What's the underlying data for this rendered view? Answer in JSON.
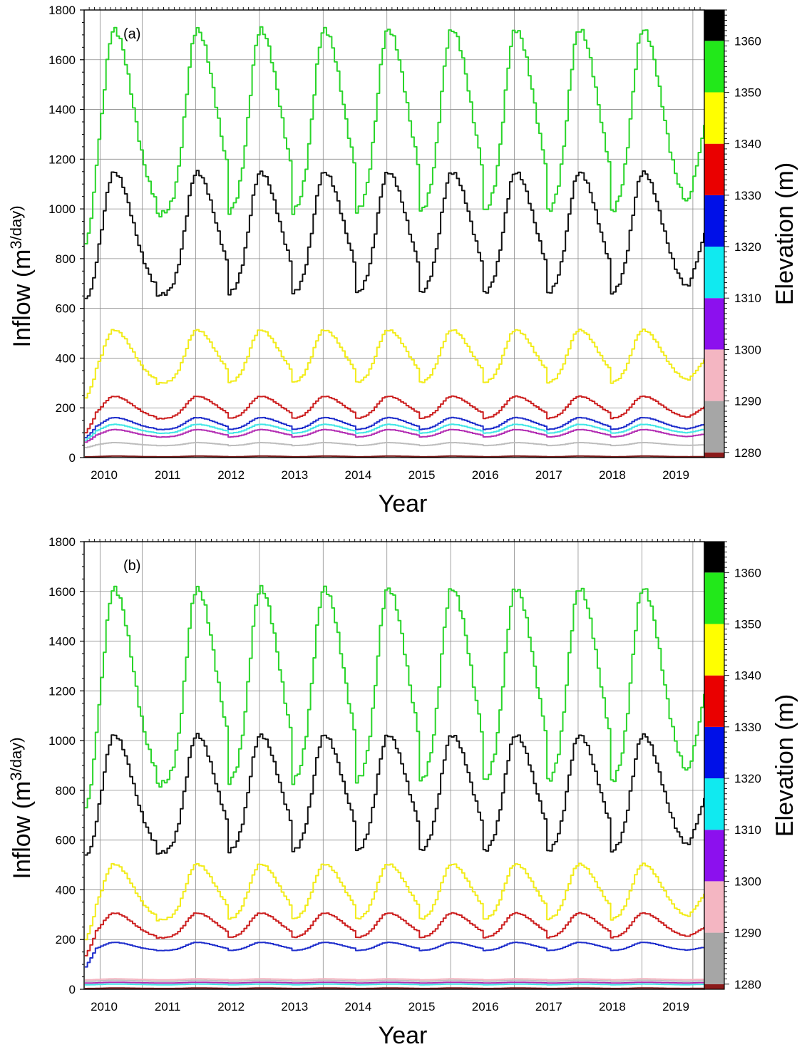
{
  "chart_data": [
    {
      "type": "line",
      "panel_label": "(a)",
      "xlabel": "Year",
      "ylabel": "Inflow (m3/day)",
      "ylabel_parts": {
        "base": "Inflow (m",
        "sup": "3",
        "unit": "/day)"
      },
      "y2label": "Elevation (m)",
      "xlim": [
        2009.75,
        2019.48
      ],
      "ylim": [
        0,
        1800
      ],
      "y_ticks": [
        0,
        200,
        400,
        600,
        800,
        1000,
        1200,
        1400,
        1600,
        1800
      ],
      "x_ticks": [
        {
          "value": 2010,
          "label": "2010"
        },
        {
          "value": 2011,
          "label": "2011"
        },
        {
          "value": 2012,
          "label": "2012"
        },
        {
          "value": 2013,
          "label": "2013"
        },
        {
          "value": 2014,
          "label": "2014"
        },
        {
          "value": 2015,
          "label": "2015"
        },
        {
          "value": 2016,
          "label": "2016"
        },
        {
          "value": 2017,
          "label": "2017"
        },
        {
          "value": 2018,
          "label": "2018"
        },
        {
          "value": 2019,
          "label": "2019"
        }
      ],
      "x_gridlines": [
        2010.0,
        2010.66,
        2011.5,
        2012.5,
        2013.5,
        2014.5,
        2015.5,
        2016.5,
        2017.5,
        2018.5,
        2019.3
      ],
      "grid": true,
      "annual_peak_x": [
        2010.2,
        2011.5,
        2012.5,
        2013.5,
        2014.5,
        2015.5,
        2016.5,
        2017.5,
        2018.5
      ],
      "series": [
        {
          "color": "#2ad52a",
          "min": 965,
          "max": 1710,
          "start": 860,
          "end": 1340
        },
        {
          "color": "#111111",
          "min": 645,
          "max": 1140,
          "start": 640,
          "end": 905
        },
        {
          "color": "#f2ec1a",
          "min": 295,
          "max": 510,
          "start": 240,
          "end": 395
        },
        {
          "color": "#cc1f1f",
          "min": 155,
          "max": 245,
          "start": 100,
          "end": 205
        },
        {
          "color": "#1f2ecc",
          "min": 112,
          "max": 160,
          "start": 80,
          "end": 135
        },
        {
          "color": "#3fe6e6",
          "min": 97,
          "max": 133,
          "start": 70,
          "end": 115
        },
        {
          "color": "#b32db3",
          "min": 82,
          "max": 112,
          "start": 62,
          "end": 95
        },
        {
          "color": "#bdbdbd",
          "min": 48,
          "max": 60,
          "start": 40,
          "end": 52
        },
        {
          "color": "#7a1a1a",
          "min": 3,
          "max": 6,
          "start": 3,
          "end": 4
        }
      ],
      "colorbar": {
        "range": [
          1279,
          1366
        ],
        "ticks": [
          1280,
          1290,
          1300,
          1310,
          1320,
          1330,
          1340,
          1350,
          1360
        ],
        "segments": [
          {
            "from": 1279,
            "to": 1280,
            "color": "#8b1a1a"
          },
          {
            "from": 1280,
            "to": 1290,
            "color": "#a6a6a6"
          },
          {
            "from": 1290,
            "to": 1300,
            "color": "#f4b6c2"
          },
          {
            "from": 1300,
            "to": 1310,
            "color": "#8c10ee"
          },
          {
            "from": 1310,
            "to": 1320,
            "color": "#10eaf0"
          },
          {
            "from": 1320,
            "to": 1330,
            "color": "#0010e8"
          },
          {
            "from": 1330,
            "to": 1340,
            "color": "#ea0000"
          },
          {
            "from": 1340,
            "to": 1350,
            "color": "#ffff00"
          },
          {
            "from": 1350,
            "to": 1360,
            "color": "#22e81a"
          },
          {
            "from": 1360,
            "to": 1366,
            "color": "#000000"
          }
        ]
      }
    },
    {
      "type": "line",
      "panel_label": "(b)",
      "xlabel": "Year",
      "ylabel": "Inflow (m3/day)",
      "ylabel_parts": {
        "base": "Inflow (m",
        "sup": "3",
        "unit": "/day)"
      },
      "y2label": "Elevation (m)",
      "xlim": [
        2009.75,
        2019.48
      ],
      "ylim": [
        0,
        1800
      ],
      "y_ticks": [
        0,
        200,
        400,
        600,
        800,
        1000,
        1200,
        1400,
        1600,
        1800
      ],
      "x_ticks": [
        {
          "value": 2010,
          "label": "2010"
        },
        {
          "value": 2011,
          "label": "2011"
        },
        {
          "value": 2012,
          "label": "2012"
        },
        {
          "value": 2013,
          "label": "2013"
        },
        {
          "value": 2014,
          "label": "2014"
        },
        {
          "value": 2015,
          "label": "2015"
        },
        {
          "value": 2016,
          "label": "2016"
        },
        {
          "value": 2017,
          "label": "2017"
        },
        {
          "value": 2018,
          "label": "2018"
        },
        {
          "value": 2019,
          "label": "2019"
        }
      ],
      "x_gridlines": [
        2010.0,
        2010.66,
        2011.5,
        2012.5,
        2013.5,
        2014.5,
        2015.5,
        2016.5,
        2017.5,
        2018.5,
        2019.3
      ],
      "grid": true,
      "annual_peak_x": [
        2010.2,
        2011.5,
        2012.5,
        2013.5,
        2014.5,
        2015.5,
        2016.5,
        2017.5,
        2018.5
      ],
      "series": [
        {
          "color": "#2ad52a",
          "min": 810,
          "max": 1600,
          "start": 730,
          "end": 1190
        },
        {
          "color": "#111111",
          "min": 540,
          "max": 1015,
          "start": 540,
          "end": 770
        },
        {
          "color": "#f2ec1a",
          "min": 275,
          "max": 500,
          "start": 200,
          "end": 385
        },
        {
          "color": "#cc1f1f",
          "min": 205,
          "max": 305,
          "start": 135,
          "end": 250
        },
        {
          "color": "#1f2ecc",
          "min": 155,
          "max": 188,
          "start": 90,
          "end": 170
        },
        {
          "color": "#f4b6c2",
          "min": 38,
          "max": 42,
          "start": 38,
          "end": 40
        },
        {
          "color": "#bdbdbd",
          "min": 32,
          "max": 36,
          "start": 32,
          "end": 34
        },
        {
          "color": "#b32db3",
          "min": 25,
          "max": 28,
          "start": 25,
          "end": 27
        },
        {
          "color": "#3fe6e6",
          "min": 18,
          "max": 21,
          "start": 18,
          "end": 20
        },
        {
          "color": "#7a1a1a",
          "min": 3,
          "max": 5,
          "start": 3,
          "end": 4
        }
      ],
      "colorbar": {
        "range": [
          1279,
          1366
        ],
        "ticks": [
          1280,
          1290,
          1300,
          1310,
          1320,
          1330,
          1340,
          1350,
          1360
        ],
        "segments": [
          {
            "from": 1279,
            "to": 1280,
            "color": "#8b1a1a"
          },
          {
            "from": 1280,
            "to": 1290,
            "color": "#a6a6a6"
          },
          {
            "from": 1290,
            "to": 1300,
            "color": "#f4b6c2"
          },
          {
            "from": 1300,
            "to": 1310,
            "color": "#8c10ee"
          },
          {
            "from": 1310,
            "to": 1320,
            "color": "#10eaf0"
          },
          {
            "from": 1320,
            "to": 1330,
            "color": "#0010e8"
          },
          {
            "from": 1330,
            "to": 1340,
            "color": "#ea0000"
          },
          {
            "from": 1340,
            "to": 1350,
            "color": "#ffff00"
          },
          {
            "from": 1350,
            "to": 1360,
            "color": "#22e81a"
          },
          {
            "from": 1360,
            "to": 1366,
            "color": "#000000"
          }
        ]
      }
    }
  ]
}
